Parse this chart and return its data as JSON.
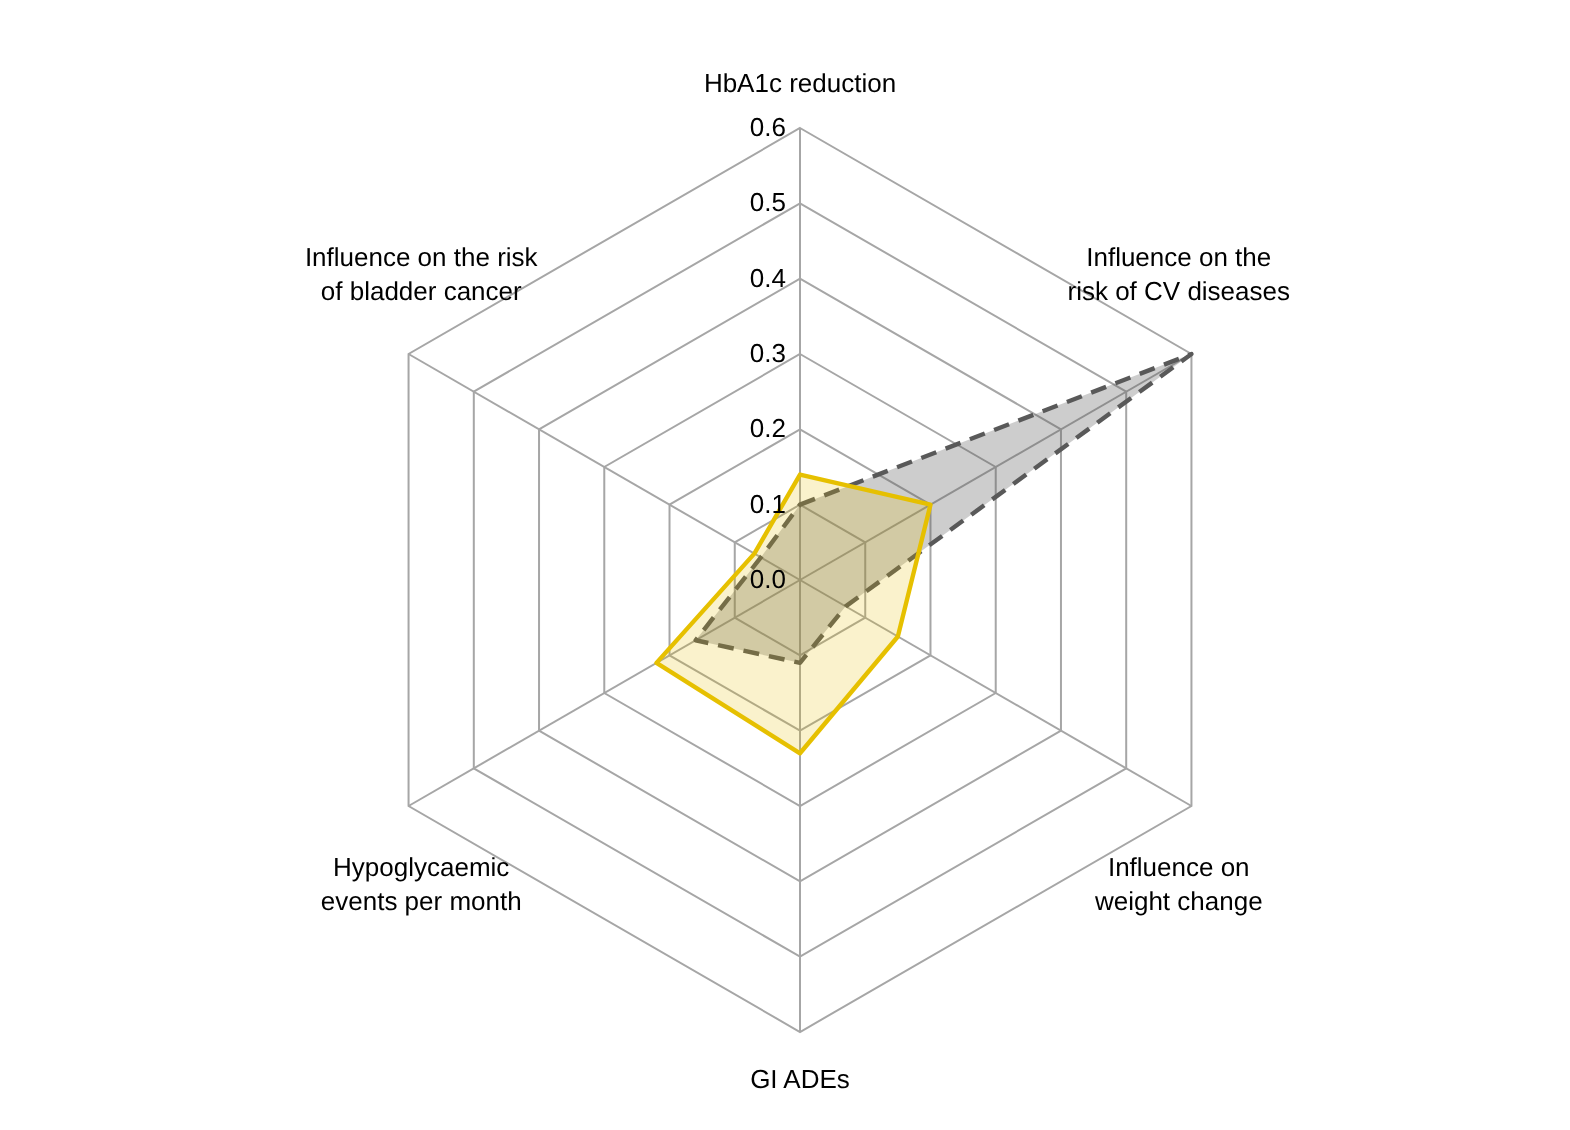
{
  "chart_data": {
    "type": "radar",
    "categories": [
      "HbA1c reduction",
      "Influence on the risk of CV diseases",
      "Influence on weight change",
      "GI ADEs",
      "Hypoglycaemic events per month",
      "Influence on the risk of bladder cancer"
    ],
    "series": [
      {
        "color": "#595959",
        "line_style": "dashed",
        "values": [
          0.1,
          0.6,
          0.07,
          0.11,
          0.16,
          0.06
        ]
      },
      {
        "color": "#e6c000",
        "line_style": "solid",
        "values": [
          0.14,
          0.2,
          0.15,
          0.23,
          0.22,
          0.07
        ]
      }
    ],
    "ylim": [
      0,
      0.6
    ],
    "yticks": [
      {
        "value": 0,
        "label": "0.0"
      },
      {
        "value": 0.1,
        "label": "0.1"
      },
      {
        "value": 0.2,
        "label": "0.2"
      },
      {
        "value": 0.3,
        "label": "0.3"
      },
      {
        "value": 0.4,
        "label": "0.4"
      },
      {
        "value": 0.5,
        "label": "0.5"
      },
      {
        "value": 0.6,
        "label": "0.6"
      }
    ],
    "grid": true,
    "legend": false
  }
}
